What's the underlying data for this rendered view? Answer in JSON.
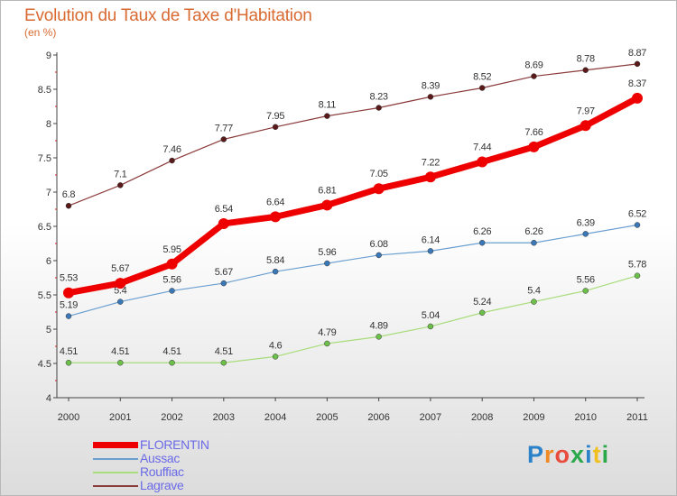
{
  "header": {
    "title": "Evolution du Taux de Taxe d'Habitation",
    "subtitle": "(en %)"
  },
  "brand": {
    "text": "Proxiti",
    "colors": [
      "#2c82c9",
      "#f08a24",
      "#e84c3d",
      "#2aa84a",
      "#2c82c9",
      "#f0c020",
      "#2aa84a"
    ]
  },
  "chart_data": {
    "type": "line",
    "x": [
      "2000",
      "2001",
      "2002",
      "2003",
      "2004",
      "2005",
      "2006",
      "2007",
      "2008",
      "2009",
      "2010",
      "2011"
    ],
    "ylim": [
      4,
      9
    ],
    "yticks": [
      "4",
      "4.5",
      "5",
      "5.5",
      "6",
      "6.5",
      "7",
      "7.5",
      "8",
      "8.5",
      "9"
    ],
    "grid": false,
    "legend_position": "bottom-left",
    "series": [
      {
        "name": "Lagrave",
        "color": "#8b3a3a",
        "dot": "#5a1a1a",
        "width": 1.2,
        "values": [
          6.8,
          7.1,
          7.46,
          7.77,
          7.95,
          8.11,
          8.23,
          8.39,
          8.52,
          8.69,
          8.78,
          8.87
        ],
        "labels": [
          "6.8",
          "7.1",
          "7.46",
          "7.77",
          "7.95",
          "8.11",
          "8.23",
          "8.39",
          "8.52",
          "8.69",
          "8.78",
          "8.87"
        ]
      },
      {
        "name": "Aussac",
        "color": "#6a9fd0",
        "dot": "#3a78b8",
        "width": 1.2,
        "values": [
          5.19,
          5.4,
          5.56,
          5.67,
          5.84,
          5.96,
          6.08,
          6.14,
          6.26,
          6.26,
          6.39,
          6.52
        ],
        "labels": [
          "5.19",
          "5.4",
          "5.56",
          "5.67",
          "5.84",
          "5.96",
          "6.08",
          "6.14",
          "6.26",
          "6.26",
          "6.39",
          "6.52"
        ]
      },
      {
        "name": "Rouffiac",
        "color": "#a8dc7a",
        "dot": "#6cc04a",
        "width": 1.2,
        "values": [
          4.51,
          4.51,
          4.51,
          4.51,
          4.6,
          4.79,
          4.89,
          5.04,
          5.24,
          5.4,
          5.56,
          5.78
        ],
        "labels": [
          "4.51",
          "4.51",
          "4.51",
          "4.51",
          "4.6",
          "4.79",
          "4.89",
          "5.04",
          "5.24",
          "5.4",
          "5.56",
          "5.78"
        ]
      },
      {
        "name": "FLORENTIN",
        "color": "#ee0000",
        "dot": "#ee0000",
        "width": 7,
        "values": [
          5.53,
          5.67,
          5.95,
          6.54,
          6.64,
          6.81,
          7.05,
          7.22,
          7.44,
          7.66,
          7.97,
          8.37
        ],
        "labels": [
          "5.53",
          "5.67",
          "5.95",
          "6.54",
          "6.64",
          "6.81",
          "7.05",
          "7.22",
          "7.44",
          "7.66",
          "7.97",
          "8.37"
        ]
      }
    ],
    "legend": [
      {
        "name": "FLORENTIN",
        "color": "#ee0000",
        "text_color": "#6a6ae8"
      },
      {
        "name": "Aussac",
        "color": "#6a9fd0",
        "text_color": "#6a6ae8"
      },
      {
        "name": "Rouffiac",
        "color": "#a8dc7a",
        "text_color": "#6a6ae8"
      },
      {
        "name": "Lagrave",
        "color": "#8b3a3a",
        "text_color": "#6a6ae8"
      }
    ]
  }
}
